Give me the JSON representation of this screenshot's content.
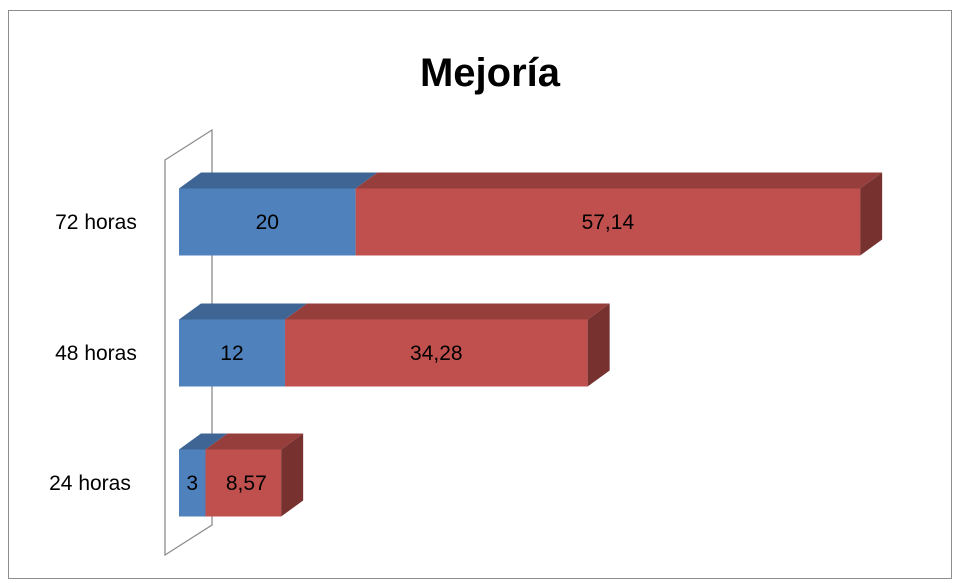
{
  "chart_data": {
    "type": "bar",
    "orientation": "horizontal",
    "stacked": true,
    "three_d": true,
    "title": "Mejoría",
    "xlabel": "",
    "ylabel": "",
    "categories": [
      "24 horas",
      "48 horas",
      "72 horas"
    ],
    "series": [
      {
        "values": [
          3,
          12,
          20
        ],
        "color": "#4F81BD"
      },
      {
        "values": [
          8.57,
          34.28,
          57.14
        ],
        "color": "#C0504D"
      }
    ],
    "data_labels": [
      [
        "3",
        "12",
        "20"
      ],
      [
        "8,57",
        "34,28",
        "57,14"
      ]
    ],
    "xlim": [
      0,
      80
    ],
    "grid": false,
    "legend": "none"
  }
}
